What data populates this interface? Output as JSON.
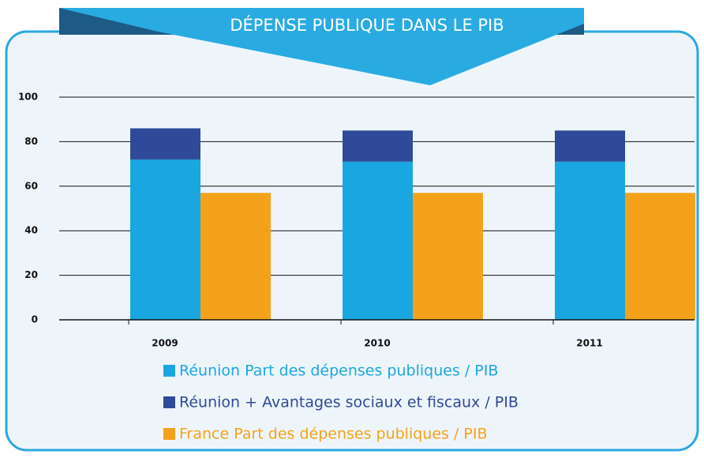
{
  "chart_data": {
    "type": "bar",
    "title": "DÉPENSE PUBLIQUE DANS LE PIB",
    "categories": [
      "2009",
      "2010",
      "2011"
    ],
    "series": [
      {
        "name": "Réunion Part des dépenses publiques / PIB",
        "color": "#1aa7e1",
        "stack": 0,
        "values": [
          72,
          71,
          71
        ]
      },
      {
        "name": "Réunion + Avantages sociaux et fiscaux / PIB",
        "color": "#2f4a98",
        "stack": 0,
        "values": [
          14,
          14,
          14
        ]
      },
      {
        "name": "France Part des dépenses publiques / PIB",
        "color": "#f5a21b",
        "stack": 1,
        "values": [
          57,
          57,
          57
        ]
      }
    ],
    "ylim": [
      0,
      100
    ],
    "yticks": [
      0,
      20,
      40,
      60,
      80,
      100
    ],
    "grid": true
  }
}
